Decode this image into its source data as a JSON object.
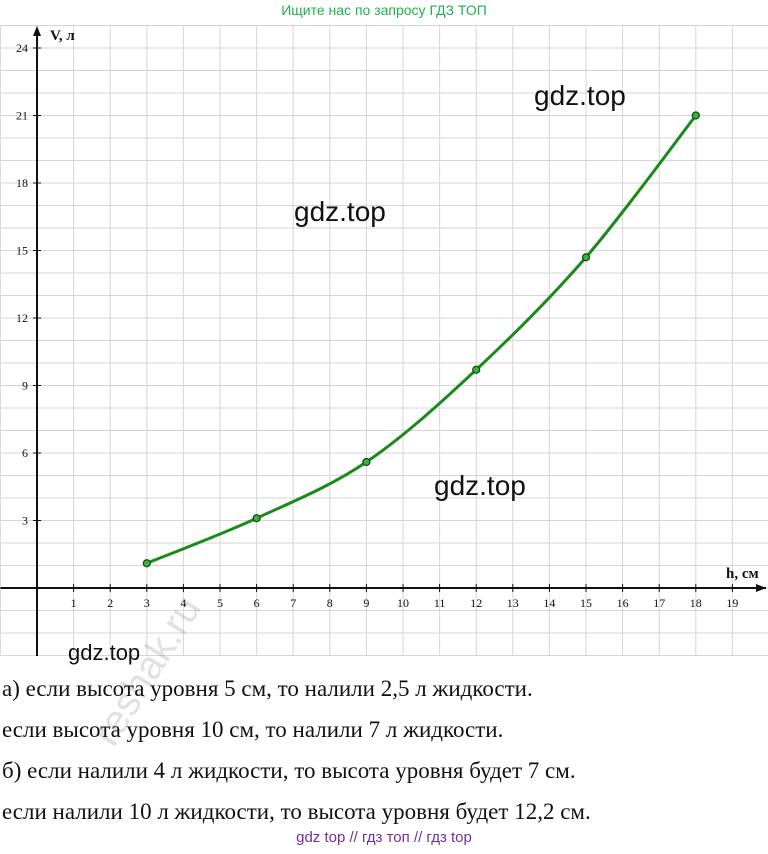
{
  "header": {
    "banner": "Ищите нас по запросу ГДЗ ТОП"
  },
  "chart_data": {
    "type": "line",
    "title": "",
    "xlabel": "h, см",
    "ylabel": "V, л",
    "xlim": [
      -1,
      20
    ],
    "ylim": [
      -3,
      25
    ],
    "x_ticks": [
      "1",
      "2",
      "3",
      "4",
      "5",
      "6",
      "7",
      "8",
      "9",
      "10",
      "11",
      "12",
      "13",
      "14",
      "15",
      "16",
      "17",
      "18",
      "19"
    ],
    "y_ticks": [
      "3",
      "6",
      "9",
      "12",
      "15",
      "18",
      "21",
      "24"
    ],
    "grid": true,
    "series": [
      {
        "color": "#1a8a1a",
        "points": [
          {
            "x": 3,
            "y": 1.1
          },
          {
            "x": 6,
            "y": 3.1
          },
          {
            "x": 9,
            "y": 5.6
          },
          {
            "x": 12,
            "y": 9.7
          },
          {
            "x": 15,
            "y": 14.7
          },
          {
            "x": 18,
            "y": 21
          }
        ]
      }
    ]
  },
  "watermarks": {
    "w1": "gdz.top",
    "w2": "gdz.top",
    "w3": "gdz.top",
    "w4": "gdz.top",
    "side": "reshak.ru"
  },
  "answers": [
    "а) если высота уровня 5 см, то налили 2,5 л жидкости.",
    "если высота уровня 10 см, то налили 7 л жидкости.",
    "б) если налили 4 л жидкости, то высота уровня будет 7 см.",
    "если налили 10 л жидкости, то высота уровня будет 12,2 см."
  ],
  "footer": {
    "banner": "gdz top  //  гдз топ  //  гдз top"
  }
}
